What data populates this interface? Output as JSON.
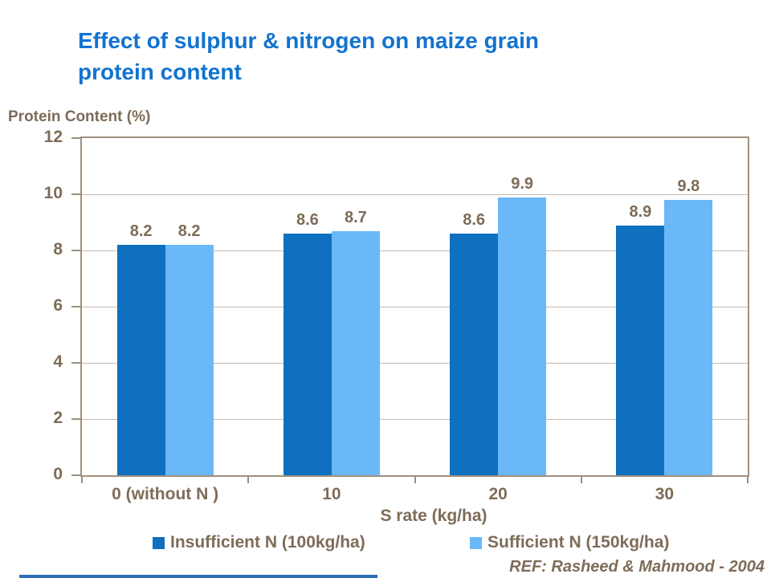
{
  "slide": {
    "title_line1": "Effect of sulphur & nitrogen on maize grain",
    "title_line2": "protein content",
    "reference": "REF: Rasheed & Mahmood - 2004"
  },
  "chart_data": {
    "type": "bar",
    "title": "Effect of sulphur & nitrogen on maize grain protein content",
    "categories": [
      "0 (without N )",
      "10",
      "20",
      "30"
    ],
    "series": [
      {
        "name": "Insufficient N (100kg/ha)",
        "color": "#0e70be",
        "values": [
          8.2,
          8.6,
          8.6,
          8.9
        ]
      },
      {
        "name": "Sufficient N (150kg/ha)",
        "color": "#6ab8f7",
        "values": [
          8.2,
          8.7,
          9.9,
          9.8
        ]
      }
    ],
    "xlabel": "S rate (kg/ha)",
    "ylabel": "Protein Content (%)",
    "ylim": [
      0,
      12
    ],
    "yticks": [
      0,
      2,
      4,
      6,
      8,
      10,
      12
    ],
    "grid": true,
    "legend_position": "bottom",
    "data_labels": true
  },
  "colors": {
    "title_text": "#1273d0",
    "body_text": "#7d6c58",
    "gridline": "#c6bbae",
    "axis_line": "#a08f7d",
    "series_insufficient": "#0e70be",
    "series_sufficient": "#6ab8f7",
    "footer_bar": "#2f6db8"
  }
}
